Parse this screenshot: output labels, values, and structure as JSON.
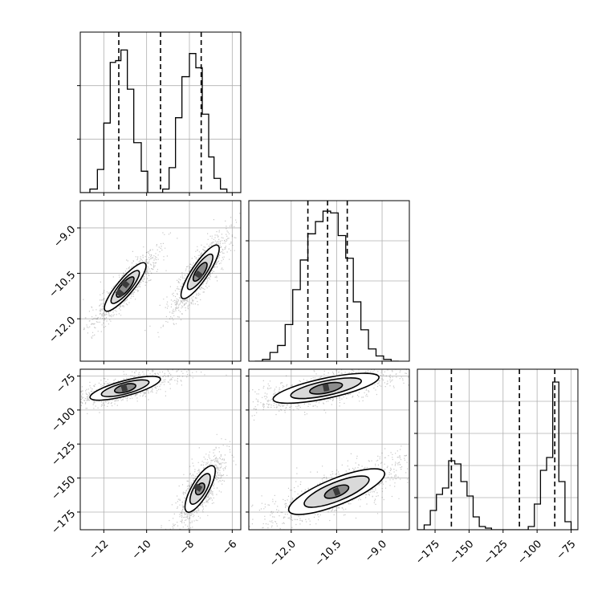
{
  "chart_data": {
    "type": "corner",
    "colors": {
      "hist": "#000000",
      "contour": "#000000",
      "grid": "#b0b0b0",
      "points": "#000000",
      "frame": "#000000"
    },
    "axes_ticks": {
      "p1": {
        "range": [
          -13.1,
          -5.6
        ],
        "ticks": [
          -12,
          -10,
          -8,
          -6
        ],
        "labels": [
          "−12",
          "−10",
          "−8",
          "−6"
        ]
      },
      "p2": {
        "range": [
          -13.4,
          -8.1
        ],
        "ticks": [
          -12.0,
          -10.5,
          -9.0
        ],
        "labels": [
          "−12.0",
          "−10.5",
          "−9.0"
        ]
      },
      "p3": {
        "range": [
          -188,
          -70
        ],
        "ticks": [
          -175,
          -150,
          -125,
          -100,
          -75
        ],
        "labels": [
          "−175",
          "−150",
          "−125",
          "−100",
          "−75"
        ]
      }
    },
    "panels": [
      {
        "id": "hist-p1",
        "kind": "hist",
        "param": "p1",
        "bin_edges": [
          -13.1,
          -12.65,
          -12.3,
          -12.0,
          -11.7,
          -11.45,
          -11.2,
          -10.9,
          -10.6,
          -10.25,
          -9.95,
          -9.6,
          -9.25,
          -8.95,
          -8.65,
          -8.35,
          -8.0,
          -7.7,
          -7.4,
          -7.1,
          -6.85,
          -6.55,
          -6.25,
          -5.95,
          -5.6
        ],
        "counts": [
          0,
          2,
          13,
          39,
          73,
          74,
          80,
          58,
          28,
          12,
          0,
          0,
          2,
          14,
          42,
          65,
          78,
          70,
          44,
          20,
          8,
          2,
          0,
          0
        ],
        "ymax": 90,
        "grid_y": [
          30,
          60
        ],
        "quantiles": [
          -11.3,
          -9.35,
          -7.45
        ]
      },
      {
        "id": "hist-p2",
        "kind": "hist",
        "param": "p2",
        "bin_edges": [
          -13.2,
          -12.95,
          -12.7,
          -12.45,
          -12.2,
          -11.95,
          -11.7,
          -11.45,
          -11.2,
          -10.95,
          -10.7,
          -10.45,
          -10.2,
          -9.95,
          -9.7,
          -9.45,
          -9.2,
          -8.95,
          -8.7,
          -8.45
        ],
        "counts": [
          0,
          1,
          5,
          9,
          21,
          41,
          58,
          73,
          80,
          86,
          85,
          72,
          59,
          34,
          18,
          7,
          3,
          1,
          0
        ],
        "ymax": 92,
        "grid_y": [
          23,
          46,
          69
        ],
        "quantiles": [
          -11.45,
          -10.8,
          -10.15
        ]
      },
      {
        "id": "hist-p3",
        "kind": "hist",
        "param": "p3",
        "bin_edges": [
          -188,
          -183,
          -178.5,
          -174,
          -169.5,
          -165,
          -160.5,
          -156,
          -151.5,
          -147,
          -142.5,
          -138,
          -133.5,
          -129,
          -124.5,
          -120,
          -115.5,
          -111,
          -106.5,
          -102,
          -97.5,
          -93,
          -88.5,
          -84,
          -79.5,
          -75,
          -70
        ],
        "counts": [
          0,
          3,
          12,
          22,
          26,
          43,
          41,
          30,
          21,
          8,
          2,
          1,
          0,
          0,
          0,
          0,
          0,
          0,
          2,
          16,
          37,
          45,
          92,
          30,
          5,
          0
        ],
        "ymax": 100,
        "grid_y": [
          20,
          40,
          60,
          80
        ],
        "quantiles": [
          -163,
          -113,
          -87
        ]
      },
      {
        "id": "scatter-p1-p2",
        "kind": "density",
        "x": "p1",
        "y": "p2",
        "clusters": [
          {
            "center": [
              -11.0,
              -10.95
            ],
            "rotation_deg": -50,
            "levels": [
              [
                1.7,
                0.35
              ],
              [
                1.15,
                0.23
              ],
              [
                0.7,
                0.14
              ]
            ],
            "core": [
              [
                -11.25,
                -11.15
              ],
              [
                -11.0,
                -10.85
              ]
            ],
            "spread": [
              2.2,
              0.55
            ],
            "n": 900
          },
          {
            "center": [
              -7.5,
              -10.45
            ],
            "rotation_deg": -56,
            "levels": [
              [
                1.75,
                0.36
              ],
              [
                1.15,
                0.24
              ],
              [
                0.6,
                0.13
              ]
            ],
            "core": [
              [
                -7.55,
                -10.55
              ]
            ],
            "spread": [
              2.3,
              0.6
            ],
            "n": 900
          }
        ]
      },
      {
        "id": "scatter-p1-p3",
        "kind": "density",
        "x": "p1",
        "y": "p3",
        "clusters": [
          {
            "center": [
              -11.0,
              -84
            ],
            "rotation_deg": -15,
            "levels": [
              [
                2.0,
                0.33
              ],
              [
                1.35,
                0.22
              ],
              [
                0.6,
                0.12
              ]
            ],
            "core": [
              [
                -11.05,
                -83.5
              ]
            ],
            "spread": [
              2.6,
              0.55
            ],
            "n": 900
          },
          {
            "center": [
              -7.5,
              -158
            ],
            "rotation_deg": -60,
            "levels": [
              [
                1.45,
                0.38
              ],
              [
                0.95,
                0.25
              ],
              [
                0.35,
                0.12
              ]
            ],
            "core": [
              [
                -7.6,
                -157
              ]
            ],
            "spread": [
              2.0,
              0.6
            ],
            "n": 900
          }
        ]
      },
      {
        "id": "scatter-p2-p3",
        "kind": "density",
        "x": "p2",
        "y": "p3",
        "clusters": [
          {
            "center": [
              -10.85,
              -84
            ],
            "rotation_deg": -12,
            "levels": [
              [
                2.1,
                0.33
              ],
              [
                1.4,
                0.22
              ],
              [
                0.65,
                0.12
              ]
            ],
            "core": [
              [
                -10.85,
                -83.5
              ]
            ],
            "spread": [
              2.8,
              0.5
            ],
            "n": 900
          },
          {
            "center": [
              -10.5,
              -160
            ],
            "rotation_deg": -22,
            "levels": [
              [
                2.0,
                0.45
              ],
              [
                1.35,
                0.3
              ],
              [
                0.5,
                0.13
              ]
            ],
            "core": [
              [
                -10.5,
                -160
              ]
            ],
            "spread": [
              2.7,
              0.7
            ],
            "n": 900
          }
        ]
      }
    ]
  }
}
